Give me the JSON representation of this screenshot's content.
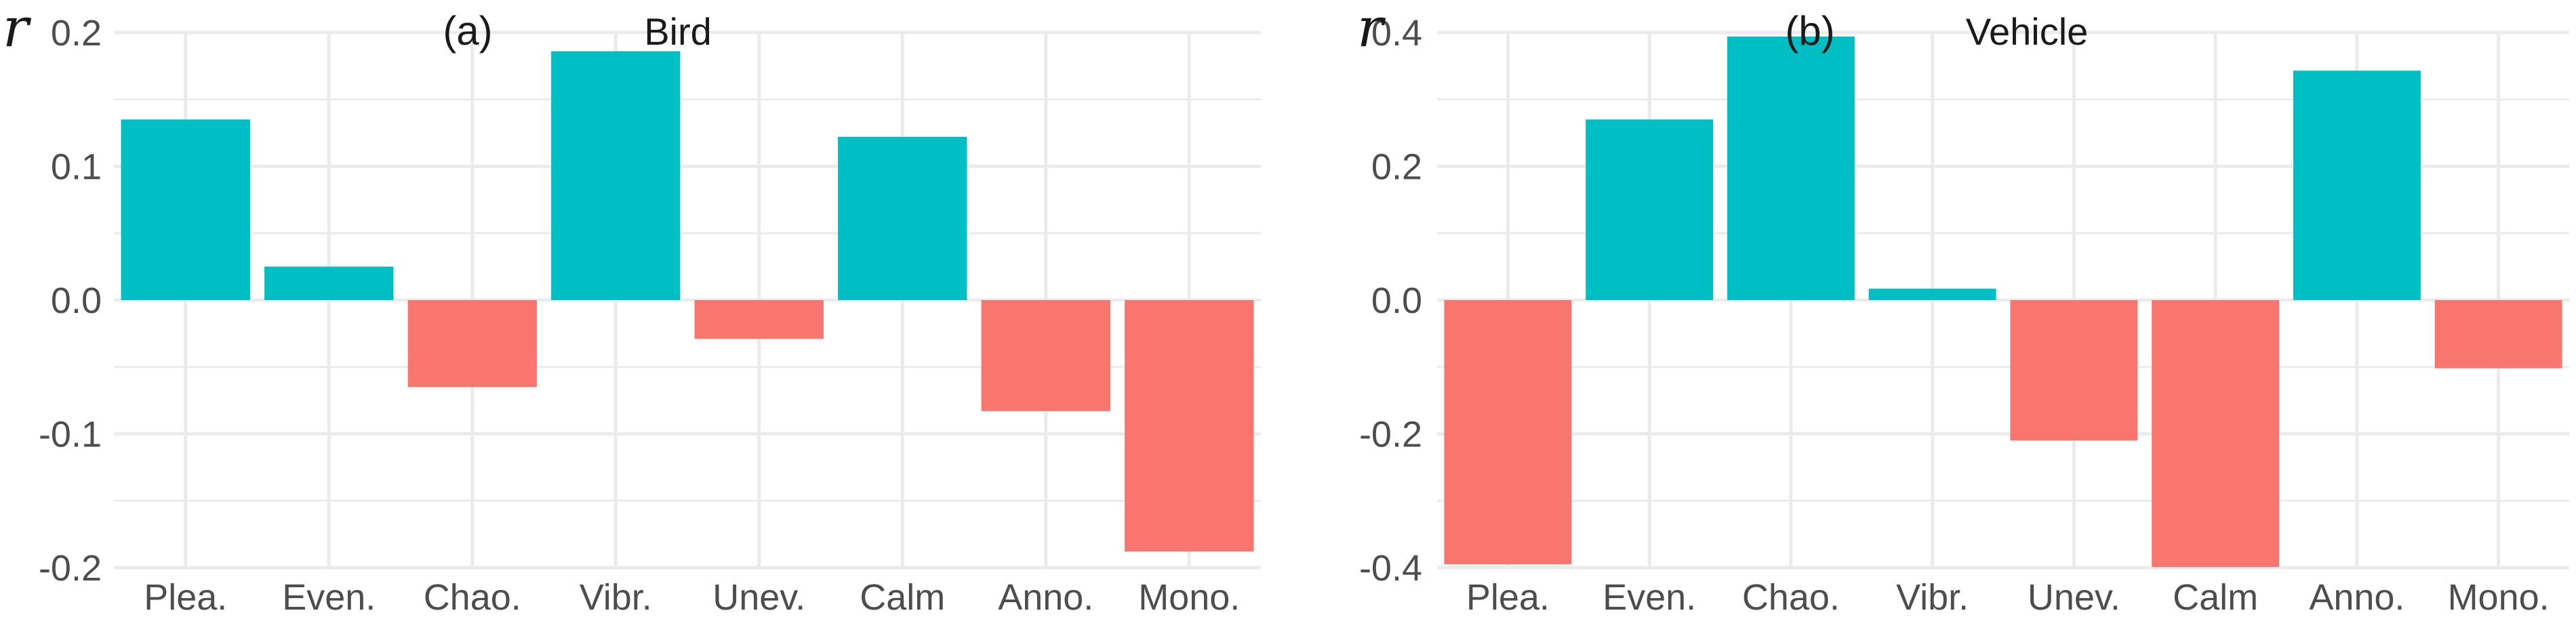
{
  "chart_data": [
    {
      "type": "bar",
      "panel": "(a)",
      "title": "Bird",
      "ylabel": "r",
      "categories": [
        "Plea.",
        "Even.",
        "Chao.",
        "Vibr.",
        "Unev.",
        "Calm",
        "Anno.",
        "Mono."
      ],
      "values": [
        0.135,
        0.025,
        -0.065,
        0.186,
        -0.029,
        0.122,
        -0.083,
        -0.188
      ],
      "ylim": [
        -0.2,
        0.2
      ],
      "yticks": [
        {
          "value": 0.2,
          "label": "0.2"
        },
        {
          "value": 0.1,
          "label": "0.1"
        },
        {
          "value": 0.0,
          "label": "0.0"
        },
        {
          "value": -0.1,
          "label": "-0.1"
        },
        {
          "value": -0.2,
          "label": "-0.2"
        }
      ],
      "grid": true,
      "legend": "none"
    },
    {
      "type": "bar",
      "panel": "(b)",
      "title": "Vehicle",
      "ylabel": "r",
      "categories": [
        "Plea.",
        "Even.",
        "Chao.",
        "Vibr.",
        "Unev.",
        "Calm",
        "Anno.",
        "Mono."
      ],
      "values": [
        -0.395,
        0.27,
        0.394,
        0.017,
        -0.21,
        -0.399,
        0.343,
        -0.102
      ],
      "ylim": [
        -0.4,
        0.4
      ],
      "yticks": [
        {
          "value": 0.4,
          "label": "0.4"
        },
        {
          "value": 0.2,
          "label": "0.2"
        },
        {
          "value": 0.0,
          "label": "0.0"
        },
        {
          "value": -0.2,
          "label": "-0.2"
        },
        {
          "value": -0.4,
          "label": "-0.4"
        }
      ],
      "grid": true,
      "legend": "none"
    }
  ],
  "colors": {
    "positive": "#00BFC4",
    "negative": "#F8766D",
    "grid": "#ebebeb",
    "background": "#ffffff"
  }
}
